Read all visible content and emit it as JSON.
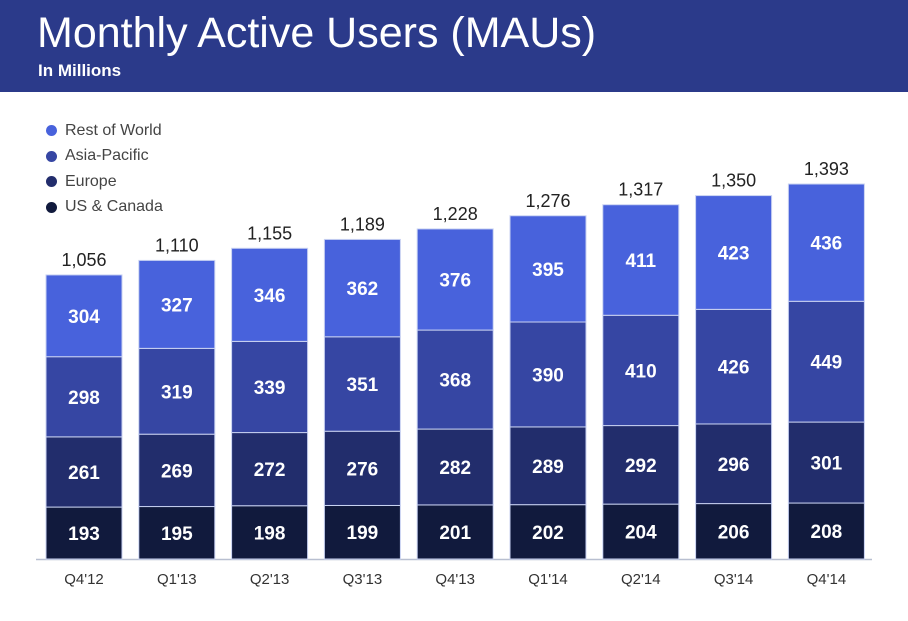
{
  "header": {
    "title": "Monthly Active Users (MAUs)",
    "subtitle": "In Millions"
  },
  "chart_data": {
    "type": "stacked-bar",
    "title": "Monthly Active Users (MAUs)",
    "subtitle": "In Millions",
    "categories": [
      "Q4'12",
      "Q1'13",
      "Q2'13",
      "Q3'13",
      "Q4'13",
      "Q1'14",
      "Q2'14",
      "Q3'14",
      "Q4'14"
    ],
    "series": [
      {
        "name": "US & Canada",
        "color": "#111a3d",
        "values": [
          193,
          195,
          198,
          199,
          201,
          202,
          204,
          206,
          208
        ]
      },
      {
        "name": "Europe",
        "color": "#222d6c",
        "values": [
          261,
          269,
          272,
          276,
          282,
          289,
          292,
          296,
          301
        ]
      },
      {
        "name": "Asia-Pacific",
        "color": "#3646a3",
        "values": [
          298,
          319,
          339,
          351,
          368,
          390,
          410,
          426,
          449
        ]
      },
      {
        "name": "Rest of World",
        "color": "#4862dc",
        "values": [
          304,
          327,
          346,
          362,
          376,
          395,
          411,
          423,
          436
        ]
      }
    ],
    "totals": [
      "1,056",
      "1,110",
      "1,155",
      "1,189",
      "1,228",
      "1,276",
      "1,317",
      "1,350",
      "1,393"
    ],
    "legend_position": "top-left",
    "legend_order": [
      "Rest of World",
      "Asia-Pacific",
      "Europe",
      "US & Canada"
    ],
    "grid": false
  }
}
